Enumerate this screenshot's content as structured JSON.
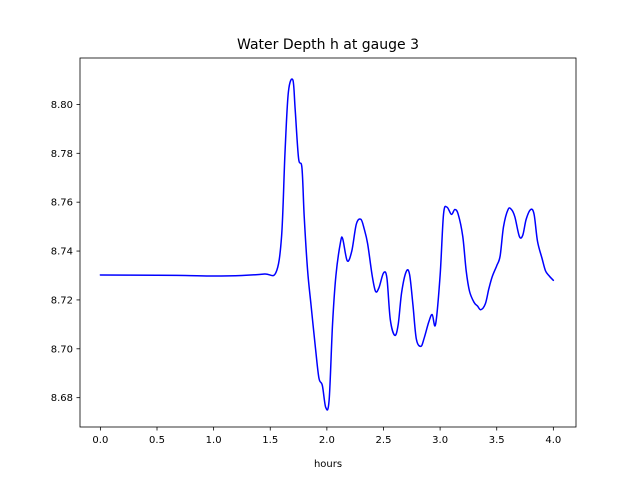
{
  "chart_data": {
    "type": "line",
    "title": "Water Depth h at gauge 3",
    "xlabel": "hours",
    "ylabel": "",
    "xlim": [
      -0.18,
      4.2
    ],
    "ylim": [
      8.668,
      8.819
    ],
    "xticks": [
      0.0,
      0.5,
      1.0,
      1.5,
      2.0,
      2.5,
      3.0,
      3.5,
      4.0
    ],
    "xtick_labels": [
      "0.0",
      "0.5",
      "1.0",
      "1.5",
      "2.0",
      "2.5",
      "3.0",
      "3.5",
      "4.0"
    ],
    "yticks": [
      8.68,
      8.7,
      8.72,
      8.74,
      8.76,
      8.78,
      8.8
    ],
    "ytick_labels": [
      "8.68",
      "8.70",
      "8.72",
      "8.74",
      "8.76",
      "8.78",
      "8.80"
    ],
    "grid": false,
    "legend": "none",
    "colors": {
      "line": "#0000ff",
      "axes": "#000000",
      "background": "#ffffff"
    },
    "series": [
      {
        "x": [
          0.0,
          0.5,
          0.75,
          1.0,
          1.25,
          1.45,
          1.55,
          1.6,
          1.63,
          1.66,
          1.7,
          1.72,
          1.75,
          1.78,
          1.8,
          1.83,
          1.86,
          1.9,
          1.93,
          1.96,
          1.99,
          2.02,
          2.05,
          2.08,
          2.12,
          2.14,
          2.18,
          2.22,
          2.26,
          2.3,
          2.33,
          2.36,
          2.4,
          2.43,
          2.46,
          2.5,
          2.53,
          2.56,
          2.6,
          2.63,
          2.66,
          2.7,
          2.73,
          2.76,
          2.79,
          2.83,
          2.86,
          2.9,
          2.93,
          2.96,
          3.0,
          3.03,
          3.06,
          3.1,
          3.13,
          3.16,
          3.2,
          3.23,
          3.26,
          3.3,
          3.33,
          3.36,
          3.4,
          3.43,
          3.46,
          3.5,
          3.53,
          3.56,
          3.6,
          3.63,
          3.66,
          3.7,
          3.73,
          3.76,
          3.8,
          3.83,
          3.86,
          3.9,
          3.93,
          3.96,
          4.0
        ],
        "values": [
          8.7302,
          8.7301,
          8.73,
          8.7298,
          8.73,
          8.7306,
          8.7312,
          8.746,
          8.78,
          8.805,
          8.81,
          8.798,
          8.778,
          8.774,
          8.754,
          8.732,
          8.718,
          8.7,
          8.688,
          8.685,
          8.676,
          8.679,
          8.71,
          8.73,
          8.7435,
          8.745,
          8.736,
          8.74,
          8.751,
          8.753,
          8.749,
          8.743,
          8.73,
          8.7235,
          8.725,
          8.731,
          8.729,
          8.712,
          8.7055,
          8.71,
          8.723,
          8.7315,
          8.7305,
          8.718,
          8.704,
          8.701,
          8.7045,
          8.711,
          8.714,
          8.71,
          8.73,
          8.755,
          8.758,
          8.755,
          8.757,
          8.755,
          8.746,
          8.732,
          8.7235,
          8.719,
          8.7175,
          8.716,
          8.7185,
          8.7245,
          8.7295,
          8.734,
          8.738,
          8.75,
          8.757,
          8.757,
          8.754,
          8.746,
          8.7465,
          8.753,
          8.757,
          8.755,
          8.744,
          8.737,
          8.732,
          8.73,
          8.728
        ]
      }
    ]
  }
}
